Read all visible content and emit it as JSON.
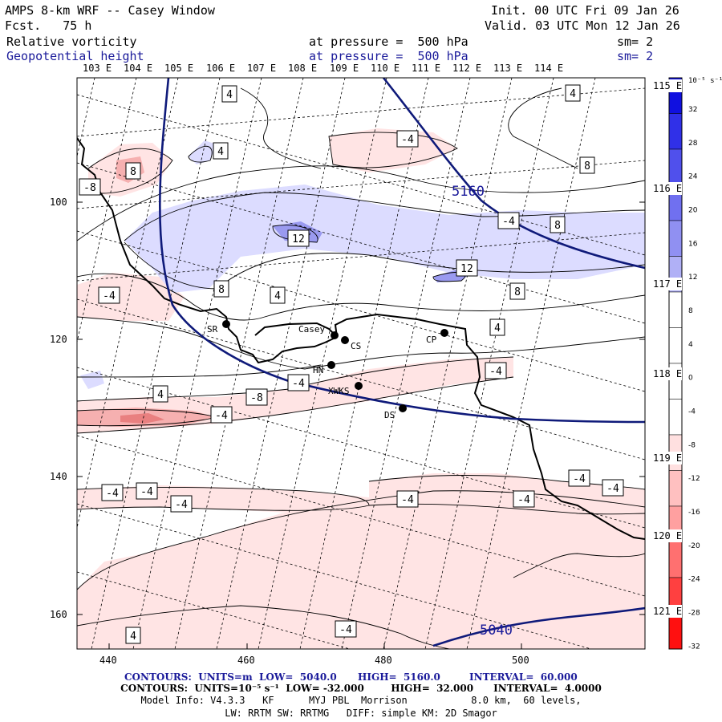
{
  "header": {
    "title": "AMPS 8-km WRF -- Casey Window",
    "forecast": "Fcst.   75 h",
    "init": "Init. 00 UTC Fri 09 Jan 26",
    "valid": "Valid. 03 UTC Mon 12 Jan 26",
    "field1": {
      "name": "Relative vorticity",
      "level": "at pressure =  500 hPa",
      "smooth": "sm= 2"
    },
    "field2": {
      "name": "Geopotential height",
      "level": "at pressure =  500 hPa",
      "smooth": "sm= 2"
    }
  },
  "longitude_labels": [
    "103 E",
    "104 E",
    "105 E",
    "106 E",
    "107 E",
    "108 E",
    "109 E",
    "110 E",
    "111 E",
    "112 E",
    "113 E",
    "114 E"
  ],
  "latitude_labels": [
    "115 E",
    "116 E",
    "117 E",
    "118 E",
    "119 E",
    "120 E",
    "121 E"
  ],
  "grid_y_ticks": [
    "100",
    "120",
    "140",
    "160"
  ],
  "grid_x_ticks": [
    "440",
    "460",
    "480",
    "500"
  ],
  "colorbar": {
    "unit": "10⁻⁵ s⁻¹",
    "labels": [
      "32",
      "28",
      "24",
      "20",
      "16",
      "12",
      "8",
      "4",
      "0",
      "-4",
      "-8",
      "-12",
      "-16",
      "-20",
      "-24",
      "-28",
      "-32"
    ],
    "colors": {
      "positive_strong": "#0000ee",
      "positive_weak": "#dcdcff",
      "negative_weak": "#ffe6e6",
      "negative_strong": "#ff0000"
    }
  },
  "height_contours": [
    {
      "label": "5160"
    },
    {
      "label": "5040"
    }
  ],
  "vorticity_labels": [
    "4",
    "-4",
    "4",
    "8",
    "-8",
    "-4",
    "12",
    "8",
    "12",
    "8",
    "4",
    "-4",
    "8",
    "4",
    "-4",
    "-8",
    "-4",
    "4",
    "-4",
    "-4",
    "-4",
    "-4",
    "-4",
    "-4",
    "-4",
    "-4",
    "-4",
    "4",
    "4",
    "8"
  ],
  "stations": [
    "SR",
    "Casey",
    "CS",
    "CP",
    "HN",
    "XWKS",
    "DS"
  ],
  "footer": {
    "line1_left": "CONTOURS:  UNITS=m  LOW=  5040.0",
    "line1_mid": "HIGH=  5160.0",
    "line1_right": "INTERVAL=  60.000",
    "line2": "CONTOURS:  UNITS=10⁻⁵ s⁻¹  LOW= -32.000        HIGH=  32.000      INTERVAL=  4.0000",
    "line3": "Model Info: V4.3.3   KF      MYJ PBL  Morrison           8.0 km,  60 levels,",
    "line4": "LW: RRTM SW: RRTMG   DIFF: simple KM: 2D Smagor"
  }
}
